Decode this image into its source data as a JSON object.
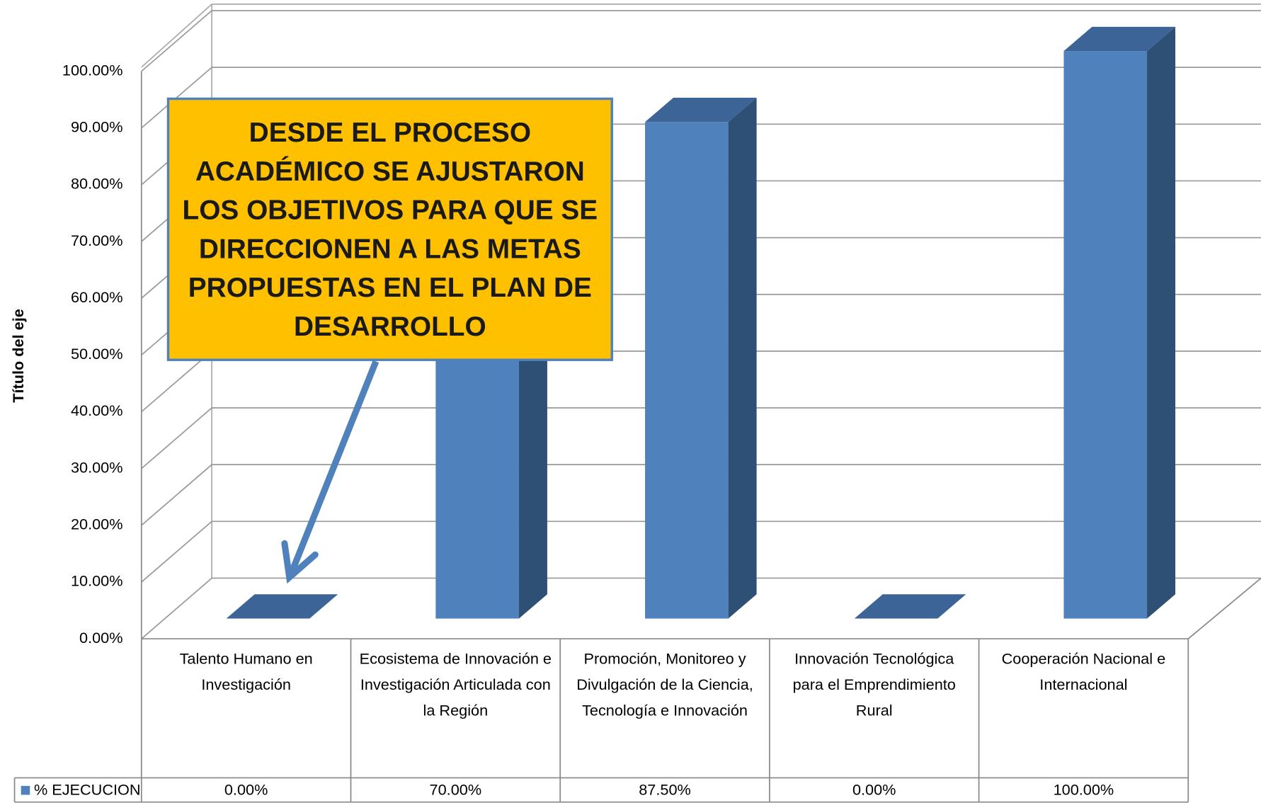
{
  "chart_data": {
    "type": "bar3d",
    "y_axis_label": "Título del eje",
    "annotation": "DESDE EL PROCESO ACADÉMICO SE AJUSTARON LOS OBJETIVOS PARA QUE SE DIRECCIONEN A LAS METAS PROPUESTAS EN EL PLAN DE DESARROLLO",
    "categories": [
      "Talento Humano en Investigación",
      "Ecosistema de Innovación e Investigación Articulada con la Región",
      "Promoción, Monitoreo y Divulgación de la Ciencia, Tecnología e Innovación",
      "Innovación Tecnológica para el Emprendimiento Rural",
      "Cooperación Nacional e Internacional"
    ],
    "series": [
      {
        "name": "% EJECUCION",
        "color": "#4f81bd",
        "values": [
          0,
          70,
          87.5,
          0,
          100
        ],
        "value_labels": [
          "0.00%",
          "70.00%",
          "87.50%",
          "0.00%",
          "100.00%"
        ]
      }
    ],
    "ylim": [
      0,
      100
    ],
    "yticks": [
      {
        "value": 0,
        "label": "0.00%"
      },
      {
        "value": 10,
        "label": "10.00%"
      },
      {
        "value": 20,
        "label": "20.00%"
      },
      {
        "value": 30,
        "label": "30.00%"
      },
      {
        "value": 40,
        "label": "40.00%"
      },
      {
        "value": 50,
        "label": "50.00%"
      },
      {
        "value": 60,
        "label": "60.00%"
      },
      {
        "value": 70,
        "label": "70.00%"
      },
      {
        "value": 80,
        "label": "80.00%"
      },
      {
        "value": 90,
        "label": "90.00%"
      },
      {
        "value": 100,
        "label": "100.00%"
      }
    ],
    "grid": true
  }
}
